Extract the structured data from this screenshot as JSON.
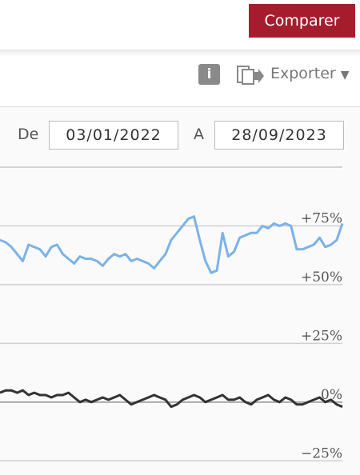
{
  "header": {
    "compare_button": "Comparer",
    "info_icon": "i",
    "export": "Exporter"
  },
  "date_range": {
    "from_label": "De",
    "from": "03/01/2022",
    "to_label": "A",
    "to": "28/09/2023"
  },
  "chart_data": {
    "type": "line",
    "series": [
      {
        "color": "#7cb2e8",
        "values": [
          69,
          68,
          66,
          63,
          60,
          67,
          66,
          65,
          62,
          66,
          67,
          63,
          61,
          59,
          62,
          61,
          61,
          60,
          58,
          61,
          63,
          62,
          63,
          60,
          61,
          60,
          59,
          57,
          60,
          63,
          69,
          72,
          75,
          78,
          79,
          69,
          60,
          55,
          56,
          72,
          62,
          64,
          70,
          71,
          72,
          72,
          75,
          74,
          76,
          75,
          76,
          75,
          65,
          65,
          66,
          67,
          70,
          66,
          67,
          69,
          76
        ]
      },
      {
        "color": "#333333",
        "values": [
          4,
          5,
          5,
          4,
          5,
          3,
          4,
          3,
          3,
          2,
          3,
          3,
          4,
          2,
          0,
          1,
          0,
          1,
          2,
          1,
          2,
          3,
          1,
          -1,
          0,
          1,
          2,
          3,
          2,
          1,
          -2,
          -1,
          1,
          2,
          3,
          2,
          0,
          1,
          2,
          3,
          1,
          1,
          2,
          0,
          -1,
          1,
          2,
          3,
          1,
          0,
          2,
          1,
          -1,
          -1,
          0,
          1,
          2,
          0,
          1,
          -1,
          -2
        ]
      }
    ],
    "ylim": [
      -30,
      100
    ],
    "yticks": [
      {
        "value": -25,
        "label": "−25%"
      },
      {
        "value": 0,
        "label": "0%"
      },
      {
        "value": 25,
        "label": "+25%"
      },
      {
        "value": 50,
        "label": "+50%"
      },
      {
        "value": 75,
        "label": "+75%"
      }
    ],
    "grid": true
  }
}
